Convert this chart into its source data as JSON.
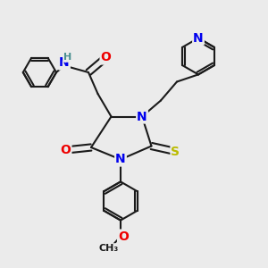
{
  "bg_color": "#ebebeb",
  "bond_color": "#1a1a1a",
  "bond_width": 1.5,
  "dbo": 0.012,
  "atom_colors": {
    "N": "#0000ee",
    "O": "#ee0000",
    "S": "#bbbb00",
    "H": "#4a9090",
    "C": "#1a1a1a"
  },
  "afs": 10
}
